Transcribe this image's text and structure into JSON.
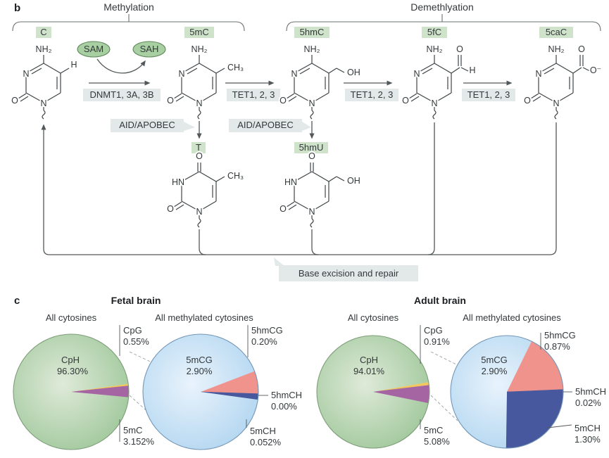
{
  "panel_b": {
    "label": "b",
    "methylation_label": "Methylation",
    "demethylation_label": "Demethlyation",
    "sam": "SAM",
    "sah": "SAH",
    "dnmt": "DNMT1, 3A, 3B",
    "tet": "TET1, 2, 3",
    "aid": "AID/APOBEC",
    "base_excision": "Base excision and repair",
    "molecules": {
      "c": "C",
      "m5c": "5mC",
      "hm5c": "5hmC",
      "f5c": "5fC",
      "ca5c": "5caC",
      "t": "T",
      "hm5u": "5hmU"
    },
    "atoms": {
      "n": "N",
      "hn": "HN",
      "o": "O",
      "h": "H",
      "nh2": "NH₂",
      "ch3": "CH₃",
      "oh": "OH",
      "ominus": "O⁻"
    },
    "colors": {
      "tag_green": "#cfe3ca",
      "oval_green": "#a8cfa2",
      "gray_box": "#e3e8e9"
    }
  },
  "panel_c": {
    "label": "c"
  },
  "chart_data": {
    "type": "pie",
    "legend_position": "none",
    "pies": [
      {
        "group": "Fetal brain",
        "title": "All cytosines",
        "slices": [
          {
            "label": "CpG",
            "pct": "0.55%",
            "value": 0.55,
            "color": "#f3c75f"
          },
          {
            "label": "5mC",
            "pct": "3.152%",
            "value": 3.152,
            "color": "#a565a3"
          },
          {
            "label": "CpH",
            "pct": "96.30%",
            "value": 96.3,
            "color": "body"
          }
        ]
      },
      {
        "group": "Fetal brain",
        "title": "All methylated cytosines",
        "slices": [
          {
            "label": "5hmCG",
            "pct": "0.20%",
            "value": 0.2,
            "color": "#ef938c"
          },
          {
            "label": "5hmCH",
            "pct": "0.00%",
            "value": 0.0,
            "color": "#47589e"
          },
          {
            "label": "5mCH",
            "pct": "0.052%",
            "value": 0.052,
            "color": "#47589e"
          },
          {
            "label": "5mCG",
            "pct": "2.90%",
            "value": 2.9,
            "color": "body"
          }
        ]
      },
      {
        "group": "Adult brain",
        "title": "All cytosines",
        "slices": [
          {
            "label": "CpG",
            "pct": "0.91%",
            "value": 0.91,
            "color": "#f3c75f"
          },
          {
            "label": "5mC",
            "pct": "5.08%",
            "value": 5.08,
            "color": "#a565a3"
          },
          {
            "label": "CpH",
            "pct": "94.01%",
            "value": 94.01,
            "color": "body"
          }
        ]
      },
      {
        "group": "Adult brain",
        "title": "All methylated cytosines",
        "slices": [
          {
            "label": "5hmCG",
            "pct": "0.87%",
            "value": 0.87,
            "color": "#ef938c"
          },
          {
            "label": "5hmCH",
            "pct": "0.02%",
            "value": 0.02,
            "color": "#47589e"
          },
          {
            "label": "5mCH",
            "pct": "1.30%",
            "value": 1.3,
            "color": "#47589e"
          },
          {
            "label": "5mCG",
            "pct": "2.90%",
            "value": 2.9,
            "color": "body"
          }
        ]
      }
    ],
    "body_colors": {
      "green_edge": "#a6cba1",
      "green_center": "#dfead9",
      "blue_edge": "#b6d8f1",
      "blue_center": "#e9f3fc"
    }
  }
}
